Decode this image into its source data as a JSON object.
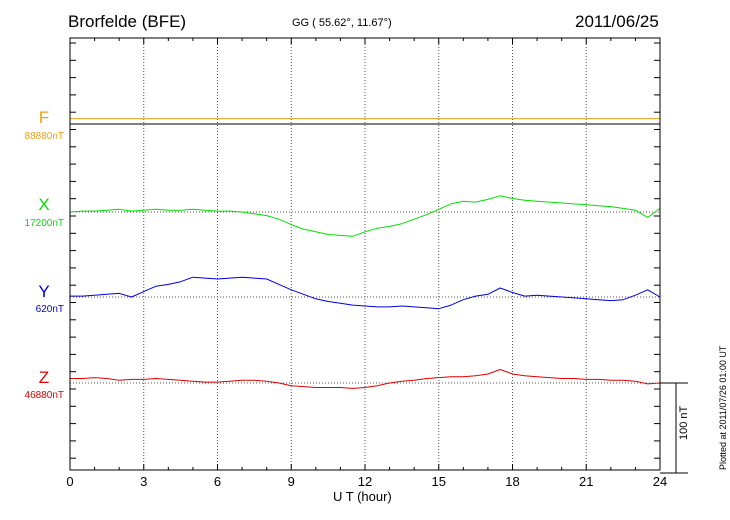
{
  "header": {
    "station": "Brorfelde (BFE)",
    "coords": "GG ( 55.62°,  11.67°)",
    "date": "2011/06/25",
    "plotted": "Plotted at 2011/07/26 01:00 UT"
  },
  "chart_data": {
    "type": "line",
    "xlabel": "U T (hour)",
    "xlim": [
      0,
      24
    ],
    "xticks": [
      "0",
      "3",
      "6",
      "9",
      "12",
      "15",
      "18",
      "21",
      "24"
    ],
    "scale_bar": "100 nT",
    "grid": true,
    "series": [
      {
        "name": "F",
        "baseline": "88880nT",
        "color": "#e8a317",
        "x": [
          0,
          3,
          6,
          9,
          12,
          15,
          18,
          21,
          24
        ],
        "y": [
          6,
          6,
          6,
          6,
          6,
          6,
          6,
          6,
          6
        ]
      },
      {
        "name": "X",
        "baseline": "17200nT",
        "color": "#00e000",
        "x": [
          0,
          0.5,
          1,
          1.5,
          2,
          2.5,
          3,
          3.5,
          4,
          4.5,
          5,
          5.5,
          6,
          6.5,
          7,
          7.5,
          8,
          8.5,
          9,
          9.5,
          10,
          10.5,
          11,
          11.5,
          12,
          12.5,
          13,
          13.5,
          14,
          14.5,
          15,
          15.5,
          16,
          16.5,
          17,
          17.5,
          18,
          18.5,
          19,
          19.5,
          20,
          20.5,
          21,
          21.5,
          22,
          22.5,
          23,
          23.5,
          24
        ],
        "y": [
          0,
          1,
          1,
          2,
          3,
          1,
          2,
          3,
          2,
          2,
          3,
          2,
          1,
          1,
          0,
          -2,
          -4,
          -8,
          -14,
          -19,
          -22,
          -25,
          -26,
          -27,
          -22,
          -18,
          -16,
          -13,
          -8,
          -3,
          3,
          9,
          12,
          11,
          14,
          18,
          15,
          13,
          12,
          11,
          10,
          9,
          8,
          7,
          6,
          4,
          2,
          -6,
          4
        ]
      },
      {
        "name": "Y",
        "baseline": "620nT",
        "color": "#0000e0",
        "x": [
          0,
          0.5,
          1,
          1.5,
          2,
          2.5,
          3,
          3.5,
          4,
          4.5,
          5,
          5.5,
          6,
          6.5,
          7,
          7.5,
          8,
          8.5,
          9,
          9.5,
          10,
          10.5,
          11,
          11.5,
          12,
          12.5,
          13,
          13.5,
          14,
          14.5,
          15,
          15.5,
          16,
          16.5,
          17,
          17.5,
          18,
          18.5,
          19,
          19.5,
          20,
          20.5,
          21,
          21.5,
          22,
          22.5,
          23,
          23.5,
          24
        ],
        "y": [
          1,
          1,
          2,
          3,
          4,
          0,
          6,
          12,
          14,
          17,
          22,
          21,
          20,
          21,
          22,
          21,
          20,
          14,
          8,
          3,
          -2,
          -5,
          -7,
          -9,
          -10,
          -11,
          -11,
          -10,
          -11,
          -12,
          -13,
          -9,
          -3,
          1,
          3,
          10,
          5,
          1,
          2,
          1,
          0,
          -1,
          -2,
          -3,
          -4,
          -3,
          2,
          8,
          0
        ]
      },
      {
        "name": "Z",
        "baseline": "46880nT",
        "color": "#e00000",
        "x": [
          0,
          0.5,
          1,
          1.5,
          2,
          2.5,
          3,
          3.5,
          4,
          4.5,
          5,
          5.5,
          6,
          6.5,
          7,
          7.5,
          8,
          8.5,
          9,
          9.5,
          10,
          10.5,
          11,
          11.5,
          12,
          12.5,
          13,
          13.5,
          14,
          14.5,
          15,
          15.5,
          16,
          16.5,
          17,
          17.5,
          18,
          18.5,
          19,
          19.5,
          20,
          20.5,
          21,
          21.5,
          22,
          22.5,
          23,
          23.5,
          24
        ],
        "y": [
          5,
          5,
          6,
          5,
          3,
          4,
          4,
          5,
          4,
          3,
          2,
          1,
          1,
          2,
          3,
          3,
          2,
          0,
          -3,
          -4,
          -5,
          -5,
          -5,
          -6,
          -5,
          -3,
          0,
          2,
          3,
          5,
          6,
          7,
          7,
          8,
          10,
          15,
          10,
          8,
          7,
          6,
          5,
          5,
          4,
          4,
          3,
          3,
          2,
          -1,
          0
        ]
      }
    ]
  }
}
